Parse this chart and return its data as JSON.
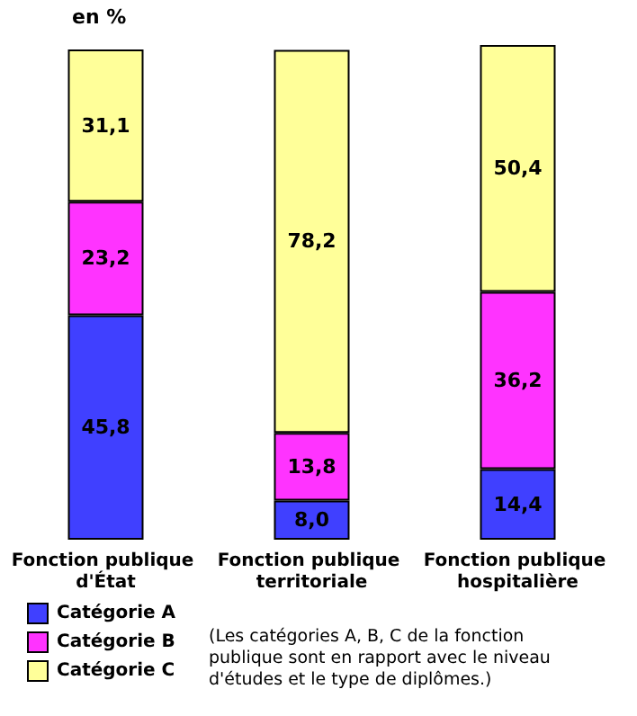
{
  "chart_data": {
    "type": "bar",
    "stacked": true,
    "ylabel": "en %",
    "categories": [
      "Fonction publique d'État",
      "Fonction publique territoriale",
      "Fonction publique hospitalière"
    ],
    "series": [
      {
        "name": "Catégorie A",
        "color": "#4040ff",
        "values": [
          45.8,
          8.0,
          14.4
        ],
        "value_labels": [
          "45,8",
          "8,0",
          "14,4"
        ]
      },
      {
        "name": "Catégorie B",
        "color": "#ff33ff",
        "values": [
          23.2,
          13.8,
          36.2
        ],
        "value_labels": [
          "23,2",
          "13,8",
          "36,2"
        ]
      },
      {
        "name": "Catégorie C",
        "color": "#ffff99",
        "values": [
          31.1,
          78.2,
          50.4
        ],
        "value_labels": [
          "31,1",
          "78,2",
          "50,4"
        ]
      }
    ],
    "legend": "bottom left",
    "grid": false,
    "annotations": [
      "(Les catégories A, B, C de la fonction publique sont en rapport avec le niveau d'études et le type de diplômes.)"
    ]
  }
}
